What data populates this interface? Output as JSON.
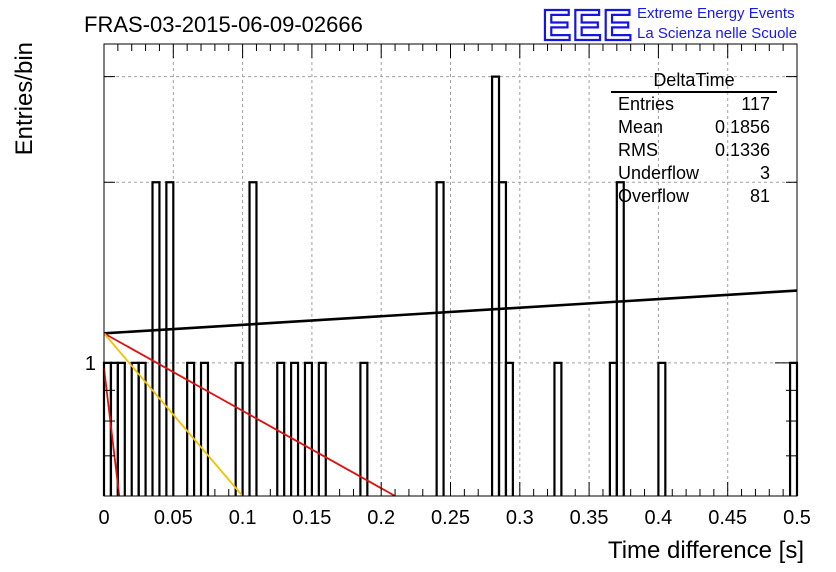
{
  "chart_data": {
    "type": "bar",
    "title": "FRAS-03-2015-06-09-02666",
    "xlabel": "Time difference [s]",
    "ylabel": "Entries/bin",
    "xlim": [
      0,
      0.5
    ],
    "y_scale": "log",
    "ylim": [
      0.6,
      3.4
    ],
    "grid": true,
    "x_ticks": [
      "0",
      "0.05",
      "0.1",
      "0.15",
      "0.2",
      "0.25",
      "0.3",
      "0.35",
      "0.4",
      "0.45",
      "0.5"
    ],
    "x_tick_values": [
      0,
      0.05,
      0.1,
      0.15,
      0.2,
      0.25,
      0.3,
      0.35,
      0.4,
      0.45,
      0.5
    ],
    "y_tick_label": "1",
    "bin_width": 0.005,
    "histogram": [
      {
        "x0": 0.0,
        "value": 1
      },
      {
        "x0": 0.005,
        "value": 1
      },
      {
        "x0": 0.01,
        "value": 1
      },
      {
        "x0": 0.02,
        "value": 1
      },
      {
        "x0": 0.025,
        "value": 1
      },
      {
        "x0": 0.035,
        "value": 2
      },
      {
        "x0": 0.045,
        "value": 2
      },
      {
        "x0": 0.06,
        "value": 1
      },
      {
        "x0": 0.07,
        "value": 1
      },
      {
        "x0": 0.095,
        "value": 1
      },
      {
        "x0": 0.105,
        "value": 2
      },
      {
        "x0": 0.125,
        "value": 1
      },
      {
        "x0": 0.135,
        "value": 1
      },
      {
        "x0": 0.145,
        "value": 1
      },
      {
        "x0": 0.155,
        "value": 1
      },
      {
        "x0": 0.185,
        "value": 1
      },
      {
        "x0": 0.24,
        "value": 2
      },
      {
        "x0": 0.28,
        "value": 3
      },
      {
        "x0": 0.285,
        "value": 2
      },
      {
        "x0": 0.29,
        "value": 1
      },
      {
        "x0": 0.325,
        "value": 1
      },
      {
        "x0": 0.365,
        "value": 1
      },
      {
        "x0": 0.37,
        "value": 2
      },
      {
        "x0": 0.4,
        "value": 1
      },
      {
        "x0": 0.495,
        "value": 1
      }
    ],
    "fits": [
      {
        "color": "#000000",
        "x": [
          0,
          0.5
        ],
        "y": [
          1.12,
          1.32
        ]
      },
      {
        "color": "#dd1111",
        "x": [
          0,
          0.21
        ],
        "y": [
          1.12,
          0.6
        ]
      },
      {
        "color": "#f2c200",
        "x": [
          0,
          0.1
        ],
        "y": [
          1.12,
          0.6
        ]
      },
      {
        "color": "#dd1111",
        "x": [
          0,
          0.011
        ],
        "y": [
          0.98,
          0.6
        ]
      }
    ],
    "stats": {
      "name": "DeltaTime",
      "rows": [
        {
          "label": "Entries",
          "value": "117"
        },
        {
          "label": "Mean",
          "value": "0.1856"
        },
        {
          "label": "RMS",
          "value": "0.1336"
        },
        {
          "label": "Underflow",
          "value": "3"
        },
        {
          "label": "Overflow",
          "value": "81"
        }
      ]
    }
  },
  "logo": {
    "mark": "EEE",
    "line1": "Extreme Energy Events",
    "line2": "La Scienza nelle Scuole"
  },
  "colors": {
    "logo": "#1a1ae6",
    "fit_black": "#000000",
    "fit_red": "#dd1111",
    "fit_yellow": "#f2c200"
  }
}
